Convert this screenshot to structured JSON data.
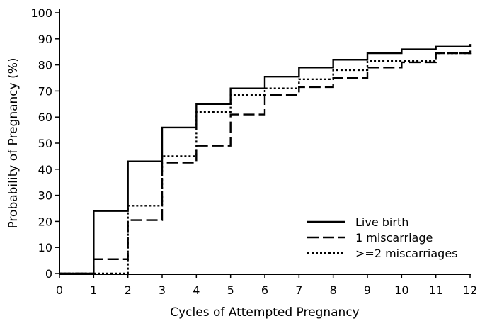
{
  "chart_data": {
    "type": "line",
    "step": true,
    "title": "",
    "xlabel": "Cycles of Attempted Pregnancy",
    "ylabel": "Probability of Pregnancy (%)",
    "xlim": [
      0,
      12
    ],
    "ylim": [
      0,
      100
    ],
    "xticks": [
      "0",
      "1",
      "2",
      "3",
      "4",
      "5",
      "6",
      "7",
      "8",
      "9",
      "10",
      "11",
      "12"
    ],
    "yticks": [
      "0",
      "10",
      "20",
      "30",
      "40",
      "50",
      "60",
      "70",
      "80",
      "90",
      "100"
    ],
    "grid": false,
    "legend_position": "bottom-right",
    "x": [
      0,
      1,
      2,
      3,
      4,
      5,
      6,
      7,
      8,
      9,
      10,
      11,
      12
    ],
    "series": [
      {
        "name": "Live birth",
        "style": "solid",
        "color": "#000000",
        "values": [
          0,
          24,
          43,
          56,
          65,
          71,
          75.5,
          79,
          82,
          84.5,
          86,
          87,
          88
        ]
      },
      {
        "name": "1 miscarriage",
        "style": "dashed",
        "color": "#000000",
        "values": [
          0,
          5.5,
          20.5,
          42.5,
          49,
          61,
          68.5,
          71.5,
          75,
          79,
          81,
          84.5,
          85.5
        ]
      },
      {
        "name": ">=2 miscarriages",
        "style": "dotted",
        "color": "#000000",
        "values": [
          0,
          0,
          26,
          45,
          62,
          68.5,
          71,
          74.5,
          78,
          81.5,
          81.5,
          84.5,
          85
        ]
      }
    ]
  }
}
